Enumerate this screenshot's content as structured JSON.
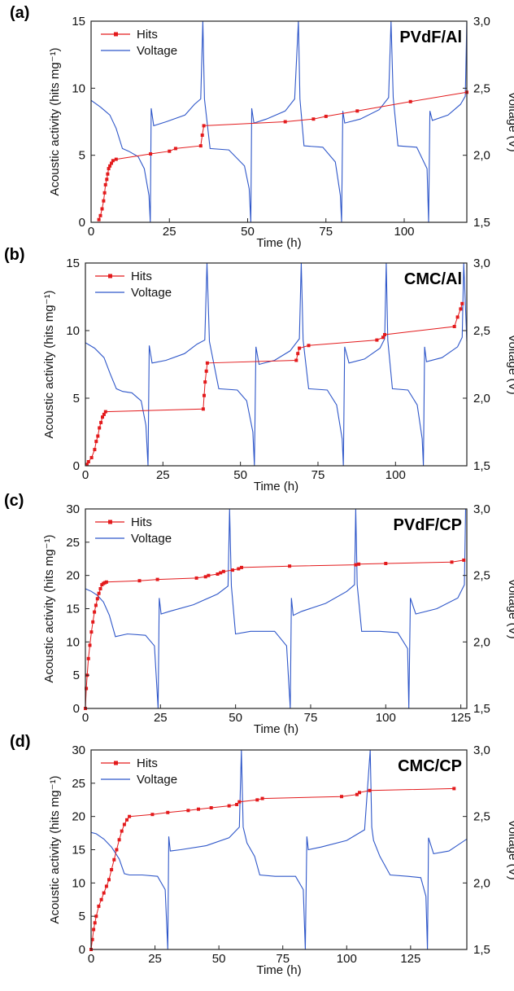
{
  "figure_labels": {
    "left_axis_label": "Acoustic activity (hits mg⁻¹)",
    "right_axis_label": "Voltage (V)",
    "x_axis_label": "Time (h)"
  },
  "colors": {
    "hits": "#e31a1c",
    "voltage": "#2f57c9",
    "axis": "#222222"
  },
  "chart_data": [
    {
      "type": "line",
      "panel_label": "(a)",
      "title": "PVdF/Al",
      "xlabel": "Time (h)",
      "ylabel": "Acoustic activity (hits mg⁻¹)",
      "y2label": "Voltage (V)",
      "xlim": [
        0,
        120
      ],
      "ylim": [
        0,
        15
      ],
      "y2lim": [
        1.5,
        3.0
      ],
      "xticks": [
        0,
        25,
        50,
        75,
        100
      ],
      "yticks": [
        0,
        5,
        10,
        15
      ],
      "y2ticks": [
        "1,5",
        "2,0",
        "2,5",
        "3,0"
      ],
      "legend": [
        "Hits",
        "Voltage"
      ],
      "legend_position": "top-left",
      "series": [
        {
          "name": "Hits",
          "axis": "left",
          "x": [
            2.5,
            3,
            3.5,
            4,
            4.3,
            4.6,
            5,
            5.3,
            5.6,
            6,
            6.5,
            7,
            8,
            19,
            25,
            27,
            35,
            35.5,
            36,
            62,
            71,
            75,
            85,
            102,
            120
          ],
          "y": [
            0.2,
            0.5,
            1,
            1.6,
            2.2,
            2.8,
            3.2,
            3.6,
            4,
            4.2,
            4.4,
            4.6,
            4.7,
            5.1,
            5.3,
            5.5,
            5.7,
            6.5,
            7.2,
            7.5,
            7.7,
            7.9,
            8.3,
            9,
            9.7
          ]
        },
        {
          "name": "Voltage",
          "axis": "right",
          "x": [
            0,
            3,
            6,
            8,
            10,
            12,
            15,
            17,
            18.5,
            18.9,
            19.2,
            20,
            24,
            30,
            33,
            35,
            35.7,
            36.2,
            38,
            44,
            49,
            50.5,
            51,
            51.3,
            52,
            56,
            62,
            65,
            66.2,
            66.7,
            68,
            74,
            78,
            79.6,
            80,
            80.4,
            81,
            86,
            92,
            95,
            95.8,
            96.5,
            98,
            104,
            107.3,
            107.8,
            108.2,
            109,
            114,
            118,
            119.5,
            120
          ],
          "y": [
            2.41,
            2.36,
            2.3,
            2.2,
            2.05,
            2.03,
            1.99,
            1.9,
            1.7,
            1.5,
            2.35,
            2.22,
            2.25,
            2.3,
            2.38,
            2.42,
            3.0,
            2.42,
            2.05,
            2.04,
            1.92,
            1.75,
            1.5,
            2.35,
            2.24,
            2.27,
            2.33,
            2.42,
            3.0,
            2.42,
            2.07,
            2.06,
            1.95,
            1.7,
            1.5,
            2.33,
            2.24,
            2.27,
            2.34,
            2.43,
            3.0,
            2.43,
            2.07,
            2.06,
            1.9,
            1.5,
            2.33,
            2.26,
            2.3,
            2.38,
            2.44,
            3.0
          ]
        }
      ]
    },
    {
      "type": "line",
      "panel_label": "(b)",
      "title": "CMC/Al",
      "xlabel": "Time (h)",
      "ylabel": "Acoustic activity (hits mg⁻¹)",
      "y2label": "Voltage (V)",
      "xlim": [
        0,
        123
      ],
      "ylim": [
        0,
        15
      ],
      "y2lim": [
        1.5,
        3.0
      ],
      "xticks": [
        0,
        25,
        50,
        75,
        100
      ],
      "yticks": [
        0,
        5,
        10,
        15
      ],
      "y2ticks": [
        "1,5",
        "2,0",
        "2,5",
        "3,0"
      ],
      "legend": [
        "Hits",
        "Voltage"
      ],
      "legend_position": "top-left",
      "series": [
        {
          "name": "Hits",
          "axis": "left",
          "x": [
            0.5,
            1,
            2,
            3,
            3.5,
            4,
            4.5,
            5,
            5.5,
            6,
            6.5,
            38,
            38.3,
            38.6,
            39,
            39.3,
            68,
            68.5,
            69,
            72,
            94,
            96,
            96.5,
            119,
            120,
            121,
            121.5
          ],
          "y": [
            0.1,
            0.3,
            0.6,
            1.2,
            1.8,
            2.2,
            2.8,
            3.2,
            3.6,
            3.8,
            4.0,
            4.2,
            5.2,
            6.2,
            7.0,
            7.6,
            7.8,
            8.3,
            8.7,
            8.9,
            9.3,
            9.5,
            9.7,
            10.3,
            11.0,
            11.6,
            12.0
          ]
        },
        {
          "name": "Voltage",
          "axis": "right",
          "x": [
            0,
            3,
            6,
            8,
            10,
            12,
            15,
            18,
            19.5,
            20.2,
            20.6,
            21.5,
            26,
            32,
            36,
            38.5,
            39.2,
            40,
            43,
            49,
            52,
            54,
            54.5,
            55,
            56,
            61,
            66,
            69,
            69.6,
            70.2,
            72,
            78,
            81,
            82.8,
            83.2,
            83.6,
            85,
            90,
            95,
            96.5,
            97,
            97.5,
            99,
            104,
            107,
            108.6,
            109,
            109.4,
            110,
            115,
            120,
            121.5,
            122,
            123
          ],
          "y": [
            2.41,
            2.37,
            2.3,
            2.18,
            2.07,
            2.05,
            2.04,
            1.98,
            1.8,
            1.5,
            2.39,
            2.26,
            2.28,
            2.33,
            2.4,
            2.43,
            3.0,
            2.42,
            2.07,
            2.06,
            1.98,
            1.75,
            1.5,
            2.38,
            2.25,
            2.28,
            2.35,
            2.44,
            3.0,
            2.43,
            2.07,
            2.06,
            1.95,
            1.7,
            1.5,
            2.38,
            2.26,
            2.29,
            2.37,
            2.44,
            3.0,
            2.43,
            2.07,
            2.06,
            1.95,
            1.7,
            1.5,
            2.38,
            2.27,
            2.3,
            2.38,
            2.45,
            3.0,
            2.42
          ]
        }
      ]
    },
    {
      "type": "line",
      "panel_label": "(c)",
      "title": "PVdF/CP",
      "xlabel": "Time (h)",
      "ylabel": "Acoustic activity (hits mg⁻¹)",
      "y2label": "Voltage (V)",
      "xlim": [
        0,
        127
      ],
      "ylim": [
        0,
        30
      ],
      "y2lim": [
        1.5,
        3.0
      ],
      "xticks": [
        0,
        25,
        50,
        75,
        100,
        125
      ],
      "yticks": [
        0,
        5,
        10,
        15,
        20,
        25,
        30
      ],
      "y2ticks": [
        "1,5",
        "2,0",
        "2,5",
        "3,0"
      ],
      "legend": [
        "Hits",
        "Voltage"
      ],
      "legend_position": "top-left",
      "series": [
        {
          "name": "Hits",
          "axis": "left",
          "x": [
            0,
            0.3,
            0.6,
            1,
            1.5,
            2,
            2.5,
            3,
            3.5,
            4,
            4.5,
            5,
            5.5,
            6,
            6.5,
            7,
            18,
            24,
            37,
            40,
            41,
            44,
            45,
            46,
            49,
            51,
            52,
            68,
            90,
            91,
            100,
            122,
            126
          ],
          "y": [
            0,
            3,
            5,
            7.5,
            9.5,
            11.5,
            13,
            14.5,
            15.5,
            16.5,
            17.3,
            18,
            18.6,
            18.8,
            18.9,
            19,
            19.2,
            19.4,
            19.6,
            19.8,
            20,
            20.2,
            20.4,
            20.6,
            20.8,
            21,
            21.2,
            21.4,
            21.6,
            21.7,
            21.8,
            22.0,
            22.3
          ]
        },
        {
          "name": "Voltage",
          "axis": "right",
          "x": [
            0,
            2,
            4,
            6,
            8,
            10,
            14,
            20,
            23,
            24.2,
            24.6,
            25.2,
            28,
            36,
            44,
            47.5,
            48,
            48.6,
            50,
            55,
            63,
            67,
            68.2,
            68.6,
            69.2,
            72,
            80,
            87,
            89.6,
            90,
            90.5,
            92,
            98,
            104,
            107.3,
            107.7,
            108.2,
            110,
            117,
            124,
            126.2,
            126.6
          ],
          "y": [
            2.4,
            2.38,
            2.35,
            2.3,
            2.2,
            2.04,
            2.06,
            2.05,
            1.97,
            1.5,
            2.33,
            2.21,
            2.23,
            2.28,
            2.36,
            2.42,
            3.0,
            2.42,
            2.06,
            2.08,
            2.08,
            1.97,
            1.5,
            2.33,
            2.2,
            2.23,
            2.29,
            2.38,
            2.43,
            3.0,
            2.43,
            2.08,
            2.08,
            2.07,
            1.95,
            1.5,
            2.33,
            2.21,
            2.25,
            2.33,
            2.43,
            3.0
          ]
        }
      ]
    },
    {
      "type": "line",
      "panel_label": "(d)",
      "title": "CMC/CP",
      "xlabel": "Time (h)",
      "ylabel": "Acoustic activity (hits mg⁻¹)",
      "y2label": "Voltage (V)",
      "xlim": [
        0,
        147
      ],
      "ylim": [
        0,
        30
      ],
      "y2lim": [
        1.5,
        3.0
      ],
      "xticks": [
        0,
        25,
        50,
        75,
        100,
        125
      ],
      "yticks": [
        0,
        5,
        10,
        15,
        20,
        25,
        30
      ],
      "y2ticks": [
        "1,5",
        "2,0",
        "2,5",
        "3,0"
      ],
      "legend": [
        "Hits",
        "Voltage"
      ],
      "legend_position": "top-left",
      "series": [
        {
          "name": "Hits",
          "axis": "left",
          "x": [
            0,
            0.5,
            1,
            1.5,
            2,
            3,
            4,
            5,
            6,
            7,
            8,
            9,
            10,
            11,
            12,
            13,
            14,
            15,
            24,
            30,
            38,
            42,
            47,
            54,
            57,
            58,
            65,
            67,
            98,
            104,
            105,
            109,
            142
          ],
          "y": [
            0,
            1.5,
            3,
            4,
            5,
            6.5,
            7.5,
            8.5,
            9.5,
            10.5,
            12,
            13.5,
            15,
            16.5,
            17.8,
            18.8,
            19.5,
            20,
            20.3,
            20.6,
            20.9,
            21.1,
            21.3,
            21.6,
            21.8,
            22.2,
            22.5,
            22.7,
            23.0,
            23.3,
            23.6,
            23.9,
            24.2
          ]
        },
        {
          "name": "Voltage",
          "axis": "right",
          "x": [
            0,
            2,
            5,
            8,
            11,
            13,
            15,
            20,
            26,
            29,
            30,
            30.4,
            31,
            35,
            45,
            54,
            58,
            58.8,
            59.5,
            61,
            64,
            66,
            72,
            80,
            83,
            83.8,
            84.4,
            85,
            90,
            100,
            107,
            109.2,
            109.8,
            110.5,
            113,
            117,
            124,
            129,
            131,
            131.6,
            132,
            134,
            140,
            147
          ],
          "y": [
            2.38,
            2.37,
            2.33,
            2.27,
            2.18,
            2.07,
            2.06,
            2.06,
            2.05,
            1.95,
            1.5,
            2.35,
            2.24,
            2.25,
            2.28,
            2.34,
            2.42,
            3.0,
            2.42,
            2.3,
            2.2,
            2.06,
            2.05,
            2.05,
            1.95,
            1.5,
            2.35,
            2.25,
            2.27,
            2.32,
            2.4,
            3.0,
            2.42,
            2.32,
            2.2,
            2.06,
            2.05,
            2.04,
            1.9,
            1.5,
            2.34,
            2.22,
            2.24,
            2.33
          ]
        }
      ]
    }
  ]
}
